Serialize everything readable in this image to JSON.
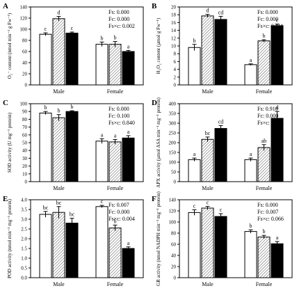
{
  "chart_data": [
    {
      "type": "bar",
      "panel": "A",
      "ylabel": "O₂⁻ content (nmol min⁻¹ g Fw⁻¹)",
      "ylim": [
        0,
        140
      ],
      "yticks": [
        0,
        20,
        40,
        60,
        80,
        100,
        120,
        140
      ],
      "categories": [
        "Male",
        "Female"
      ],
      "series": [
        {
          "pattern": "white",
          "values": [
            91,
            73
          ],
          "errors": [
            2.5,
            4
          ],
          "labels": [
            "c",
            "b"
          ]
        },
        {
          "pattern": "hatched",
          "values": [
            119,
            73
          ],
          "errors": [
            4,
            5
          ],
          "labels": [
            "d",
            "b"
          ]
        },
        {
          "pattern": "black",
          "values": [
            93,
            60
          ],
          "errors": [
            2,
            2
          ],
          "labels": [
            "c",
            "a"
          ]
        }
      ],
      "stats": [
        "Fs: 0.000",
        "Fc: 0.000",
        "Fs×c: 0.002"
      ],
      "legend_position": "top-right"
    },
    {
      "type": "bar",
      "panel": "B",
      "ylabel": "H₂O₂ content (µmol g Fw⁻¹)",
      "ylim": [
        0,
        20
      ],
      "yticks": [
        0,
        2,
        4,
        6,
        8,
        10,
        12,
        14,
        16,
        18,
        20
      ],
      "categories": [
        "Male",
        "Female"
      ],
      "series": [
        {
          "pattern": "white",
          "values": [
            9.6,
            5.2
          ],
          "errors": [
            0.8,
            0.2
          ],
          "labels": [
            "b",
            "a"
          ]
        },
        {
          "pattern": "hatched",
          "values": [
            17.7,
            11.3
          ],
          "errors": [
            0.4,
            0.3
          ],
          "labels": [
            "d",
            "b"
          ]
        },
        {
          "pattern": "black",
          "values": [
            16.8,
            15.2
          ],
          "errors": [
            0.8,
            0.4
          ],
          "labels": [
            "cd",
            "c"
          ]
        }
      ],
      "stats": [
        "Fs: 0.000",
        "Fc: 0.000",
        "Fs×c: 0.111"
      ],
      "legend_position": "top-right"
    },
    {
      "type": "bar",
      "panel": "C",
      "ylabel": "SOD activity (U mg⁻¹ protein)",
      "ylim": [
        0,
        100
      ],
      "yticks": [
        0,
        10,
        20,
        30,
        40,
        50,
        60,
        70,
        80,
        90,
        100
      ],
      "categories": [
        "Male",
        "Female"
      ],
      "series": [
        {
          "pattern": "white",
          "values": [
            88,
            52
          ],
          "errors": [
            2,
            3
          ],
          "labels": [
            "b",
            "a"
          ]
        },
        {
          "pattern": "hatched",
          "values": [
            82,
            51
          ],
          "errors": [
            4,
            3
          ],
          "labels": [
            "b",
            "a"
          ]
        },
        {
          "pattern": "black",
          "values": [
            90,
            56
          ],
          "errors": [
            1,
            3
          ],
          "labels": [
            "b",
            "a"
          ]
        }
      ],
      "stats": [
        "Fs: 0.000",
        "Fc: 0.100",
        "Fs×c: 0.840"
      ],
      "legend_position": "top-right"
    },
    {
      "type": "bar",
      "panel": "D",
      "ylabel": "APX activity (µmol ASA min⁻¹ mg⁻¹ protein)",
      "ylim": [
        0,
        400
      ],
      "yticks": [
        0,
        50,
        100,
        150,
        200,
        250,
        300,
        350,
        400
      ],
      "categories": [
        "Male",
        "Female"
      ],
      "series": [
        {
          "pattern": "white",
          "values": [
            113,
            113
          ],
          "errors": [
            8,
            8
          ],
          "labels": [
            "a",
            "a"
          ]
        },
        {
          "pattern": "hatched",
          "values": [
            217,
            175
          ],
          "errors": [
            12,
            15
          ],
          "labels": [
            "bc",
            "ab"
          ]
        },
        {
          "pattern": "black",
          "values": [
            273,
            325
          ],
          "errors": [
            15,
            35
          ],
          "labels": [
            "cd",
            "d"
          ]
        }
      ],
      "stats": [
        "Fs: 0.910",
        "Fc: 0.000",
        "Fs×c: 0.056"
      ],
      "legend_position": "top-right"
    },
    {
      "type": "bar",
      "panel": "E",
      "ylabel": "POD activity (nmol min⁻¹ mg⁻¹ protein)",
      "ylim": [
        0,
        4.0
      ],
      "yticks": [
        0,
        0.5,
        1.0,
        1.5,
        2.0,
        2.5,
        3.0,
        3.5,
        4.0
      ],
      "categories": [
        "Male",
        "Female"
      ],
      "series": [
        {
          "pattern": "white",
          "values": [
            3.25,
            3.65
          ],
          "errors": [
            0.15,
            0.06
          ],
          "labels": [
            "bc",
            "c"
          ]
        },
        {
          "pattern": "hatched",
          "values": [
            3.35,
            2.55
          ],
          "errors": [
            0.3,
            0.15
          ],
          "labels": [
            "bc",
            "b"
          ]
        },
        {
          "pattern": "black",
          "values": [
            2.8,
            1.5
          ],
          "errors": [
            0.25,
            0.08
          ],
          "labels": [
            "bc",
            "a"
          ]
        }
      ],
      "stats": [
        "Fs: 0.007",
        "Fc: 0.000",
        "Fs×c: 0.004"
      ],
      "legend_position": "top-right"
    },
    {
      "type": "bar",
      "panel": "F",
      "ylabel": "GR activity (nmol NADPH min⁻¹ mg⁻¹ protein)",
      "ylim": [
        0,
        140
      ],
      "yticks": [
        0,
        20,
        40,
        60,
        80,
        100,
        120,
        140
      ],
      "categories": [
        "Male",
        "Female"
      ],
      "series": [
        {
          "pattern": "white",
          "values": [
            117,
            83
          ],
          "errors": [
            5,
            3
          ],
          "labels": [
            "c",
            "b"
          ]
        },
        {
          "pattern": "hatched",
          "values": [
            125,
            73
          ],
          "errors": [
            3,
            3
          ],
          "labels": [
            "c",
            "b"
          ]
        },
        {
          "pattern": "black",
          "values": [
            110,
            61
          ],
          "errors": [
            5,
            4
          ],
          "labels": [
            "c",
            "a"
          ]
        }
      ],
      "stats": [
        "Fs: 0.000",
        "Fc: 0.007",
        "Fs×c: 0.066"
      ],
      "legend_position": "top-right"
    }
  ]
}
